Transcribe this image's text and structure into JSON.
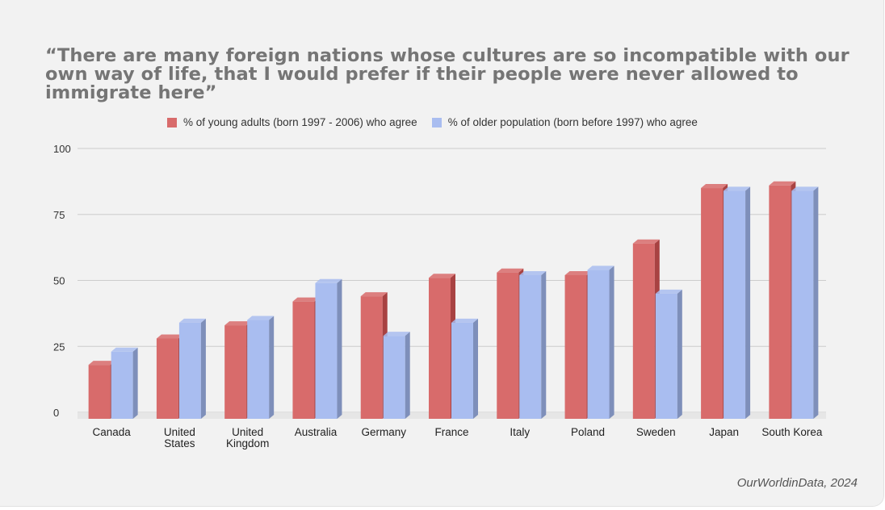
{
  "title": "“There are many foreign nations whose cultures are so incompatible with our own way of life, that I would prefer if their people were never allowed to immigrate here”",
  "source": "OurWorldinData, 2024",
  "colors": {
    "young_front": "#d86b6b",
    "young_side": "#a84242",
    "older_front": "#a9bdf0",
    "older_side": "#7e8fba",
    "grid": "#cccccc",
    "background": "#f2f2f2"
  },
  "chart_data": {
    "type": "bar",
    "categories": [
      "Canada",
      "United States",
      "United Kingdom",
      "Australia",
      "Germany",
      "France",
      "Italy",
      "Poland",
      "Sweden",
      "Japan",
      "South Korea"
    ],
    "category_lines": [
      [
        "Canada"
      ],
      [
        "United",
        "States"
      ],
      [
        "United",
        "Kingdom"
      ],
      [
        "Australia"
      ],
      [
        "Germany"
      ],
      [
        "France"
      ],
      [
        "Italy"
      ],
      [
        "Poland"
      ],
      [
        "Sweden"
      ],
      [
        "Japan"
      ],
      [
        "South Korea"
      ]
    ],
    "series": [
      {
        "name": "% of young adults (born 1997 - 2006) who agree",
        "color": "#d86b6b",
        "values": [
          18,
          28,
          33,
          42,
          44,
          51,
          53,
          52,
          64,
          85,
          86
        ]
      },
      {
        "name": "% of older population (born before 1997) who agree",
        "color": "#a9bdf0",
        "values": [
          23,
          34,
          35,
          49,
          29,
          34,
          52,
          54,
          45,
          84,
          84
        ]
      }
    ],
    "yticks": [
      0,
      25,
      50,
      75,
      100
    ],
    "ylim": [
      0,
      100
    ],
    "grid": true,
    "legend": "top"
  }
}
